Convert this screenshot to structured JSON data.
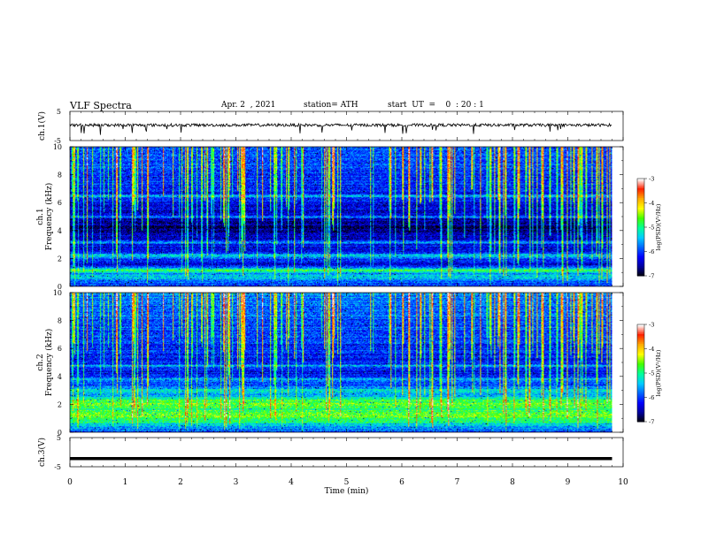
{
  "header": {
    "title": "VLF  Spectra",
    "date": "Apr. 2  , 2021",
    "station": "station= ATH",
    "start": "start  UT  =    0  : 20 : 1"
  },
  "colors": {
    "colormap": [
      "#000000",
      "#00009a",
      "#0000ff",
      "#0066ff",
      "#00ccff",
      "#00ff99",
      "#44ff00",
      "#ffff00",
      "#ffaa00",
      "#ff2200",
      "#ffffff"
    ],
    "waveform": "#000000"
  },
  "chart_data": [
    {
      "type": "line",
      "panel": "ch1-waveform",
      "ylabel": "ch.1(V)",
      "yticks": [
        "5",
        "-5"
      ],
      "ylim": [
        -5,
        5
      ],
      "xlim": [
        0,
        10
      ],
      "approx_level": 0.3,
      "data_end_min": 9.8
    },
    {
      "type": "heatmap",
      "panel": "ch1-spectrogram",
      "ylabel_lines": [
        "ch.1",
        "Frequency  (kHz)"
      ],
      "yticks": [
        "0",
        "2",
        "4",
        "6",
        "8",
        "10"
      ],
      "ylim": [
        0,
        10
      ],
      "xlim": [
        0,
        10
      ],
      "data_end_min": 9.8,
      "colorbar": {
        "label": "log(PSD)(V²/Hz)",
        "ticks": [
          "-3",
          "-4",
          "-5",
          "-6",
          "-7"
        ],
        "range": [
          -7,
          -3
        ]
      }
    },
    {
      "type": "heatmap",
      "panel": "ch2-spectrogram",
      "ylabel_lines": [
        "ch.2",
        "Frequency  (kHz)"
      ],
      "yticks": [
        "0",
        "2",
        "4",
        "6",
        "8",
        "10"
      ],
      "ylim": [
        0,
        10
      ],
      "xlim": [
        0,
        10
      ],
      "data_end_min": 9.8,
      "colorbar": {
        "label": "log(PSD)(V²/Hz)",
        "ticks": [
          "-3",
          "-4",
          "-5",
          "-6",
          "-7"
        ],
        "range": [
          -7,
          -3
        ]
      }
    },
    {
      "type": "line",
      "panel": "ch3-waveform",
      "ylabel": "ch.3(V)",
      "yticks": [
        "5",
        "-5"
      ],
      "ylim": [
        -5,
        5
      ],
      "xlim": [
        0,
        10
      ],
      "approx_level": -2.2,
      "data_end_min": 9.8
    }
  ],
  "xaxis": {
    "label": "Time  (min)",
    "ticks": [
      "0",
      "1",
      "2",
      "3",
      "4",
      "5",
      "6",
      "7",
      "8",
      "9",
      "10"
    ]
  }
}
